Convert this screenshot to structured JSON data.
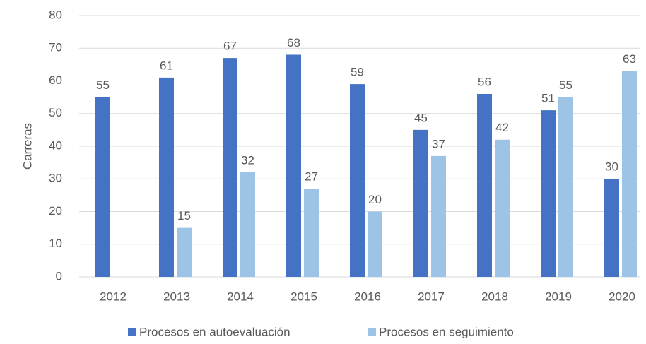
{
  "chart_data": {
    "type": "bar",
    "categories": [
      "2012",
      "2013",
      "2014",
      "2015",
      "2016",
      "2017",
      "2018",
      "2019",
      "2020"
    ],
    "series": [
      {
        "name": "Procesos en autoevaluación",
        "color": "#4472c4",
        "values": [
          55,
          61,
          67,
          68,
          59,
          45,
          56,
          51,
          30
        ]
      },
      {
        "name": "Procesos en seguimiento",
        "color": "#9dc3e6",
        "values": [
          null,
          15,
          32,
          27,
          20,
          37,
          42,
          55,
          63
        ]
      }
    ],
    "y_label": "Carreras",
    "ylim": [
      0,
      80
    ],
    "yticks": [
      0,
      10,
      20,
      30,
      40,
      50,
      60,
      70,
      80
    ],
    "grid": true,
    "legend": "bottom"
  }
}
